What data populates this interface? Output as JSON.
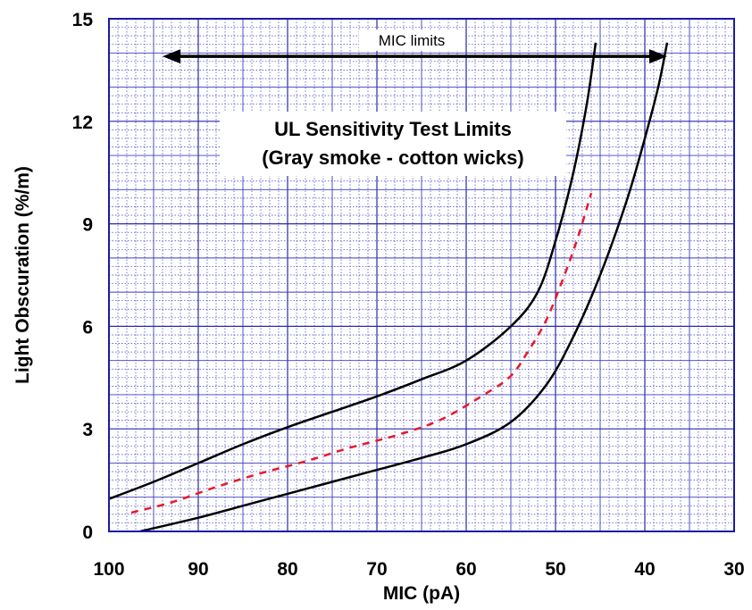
{
  "chart_data": {
    "type": "line",
    "title": "UL Sensitivity Test Limits",
    "subtitle": "(Gray smoke - cotton wicks)",
    "xlabel": "MIC (pA)",
    "ylabel": "Light Obscuration (%/m)",
    "xlim": [
      100,
      30
    ],
    "ylim": [
      0,
      15
    ],
    "x_reversed": true,
    "x_ticks": [
      100,
      90,
      80,
      70,
      60,
      50,
      40,
      30
    ],
    "y_ticks": [
      0,
      3,
      6,
      9,
      12,
      15
    ],
    "grid": "fine blue grid, major and minor",
    "annotation": {
      "text": "MIC limits",
      "arrow_from_x": 94,
      "arrow_to_x": 37.5,
      "arrow_y": 13.9
    },
    "series": [
      {
        "color": "#000000",
        "style": "solid",
        "points": [
          [
            100,
            0.95
          ],
          [
            95,
            1.45
          ],
          [
            90,
            2.0
          ],
          [
            85,
            2.55
          ],
          [
            80,
            3.05
          ],
          [
            75,
            3.5
          ],
          [
            70,
            3.95
          ],
          [
            65,
            4.45
          ],
          [
            60,
            5.0
          ],
          [
            55,
            6.0
          ],
          [
            52,
            7.0
          ],
          [
            50,
            8.5
          ],
          [
            48,
            10.5
          ],
          [
            46.5,
            12.5
          ],
          [
            45.5,
            14.3
          ]
        ]
      },
      {
        "color": "#000000",
        "style": "solid",
        "points": [
          [
            96.5,
            0.0
          ],
          [
            90,
            0.4
          ],
          [
            85,
            0.75
          ],
          [
            80,
            1.1
          ],
          [
            75,
            1.45
          ],
          [
            70,
            1.8
          ],
          [
            65,
            2.15
          ],
          [
            60,
            2.55
          ],
          [
            55,
            3.2
          ],
          [
            51,
            4.3
          ],
          [
            48,
            5.7
          ],
          [
            45,
            7.5
          ],
          [
            42,
            9.7
          ],
          [
            40,
            11.5
          ],
          [
            38.5,
            13.0
          ],
          [
            37.5,
            14.3
          ]
        ]
      },
      {
        "color": "#e8182a",
        "style": "dashed",
        "points": [
          [
            97.5,
            0.55
          ],
          [
            93,
            0.85
          ],
          [
            88,
            1.3
          ],
          [
            83,
            1.7
          ],
          [
            78,
            2.05
          ],
          [
            73,
            2.45
          ],
          [
            68,
            2.8
          ],
          [
            63,
            3.25
          ],
          [
            58,
            4.0
          ],
          [
            55,
            4.55
          ],
          [
            53,
            5.3
          ],
          [
            51,
            6.2
          ],
          [
            49,
            7.5
          ],
          [
            47.5,
            8.6
          ],
          [
            46,
            9.9
          ]
        ]
      }
    ]
  }
}
